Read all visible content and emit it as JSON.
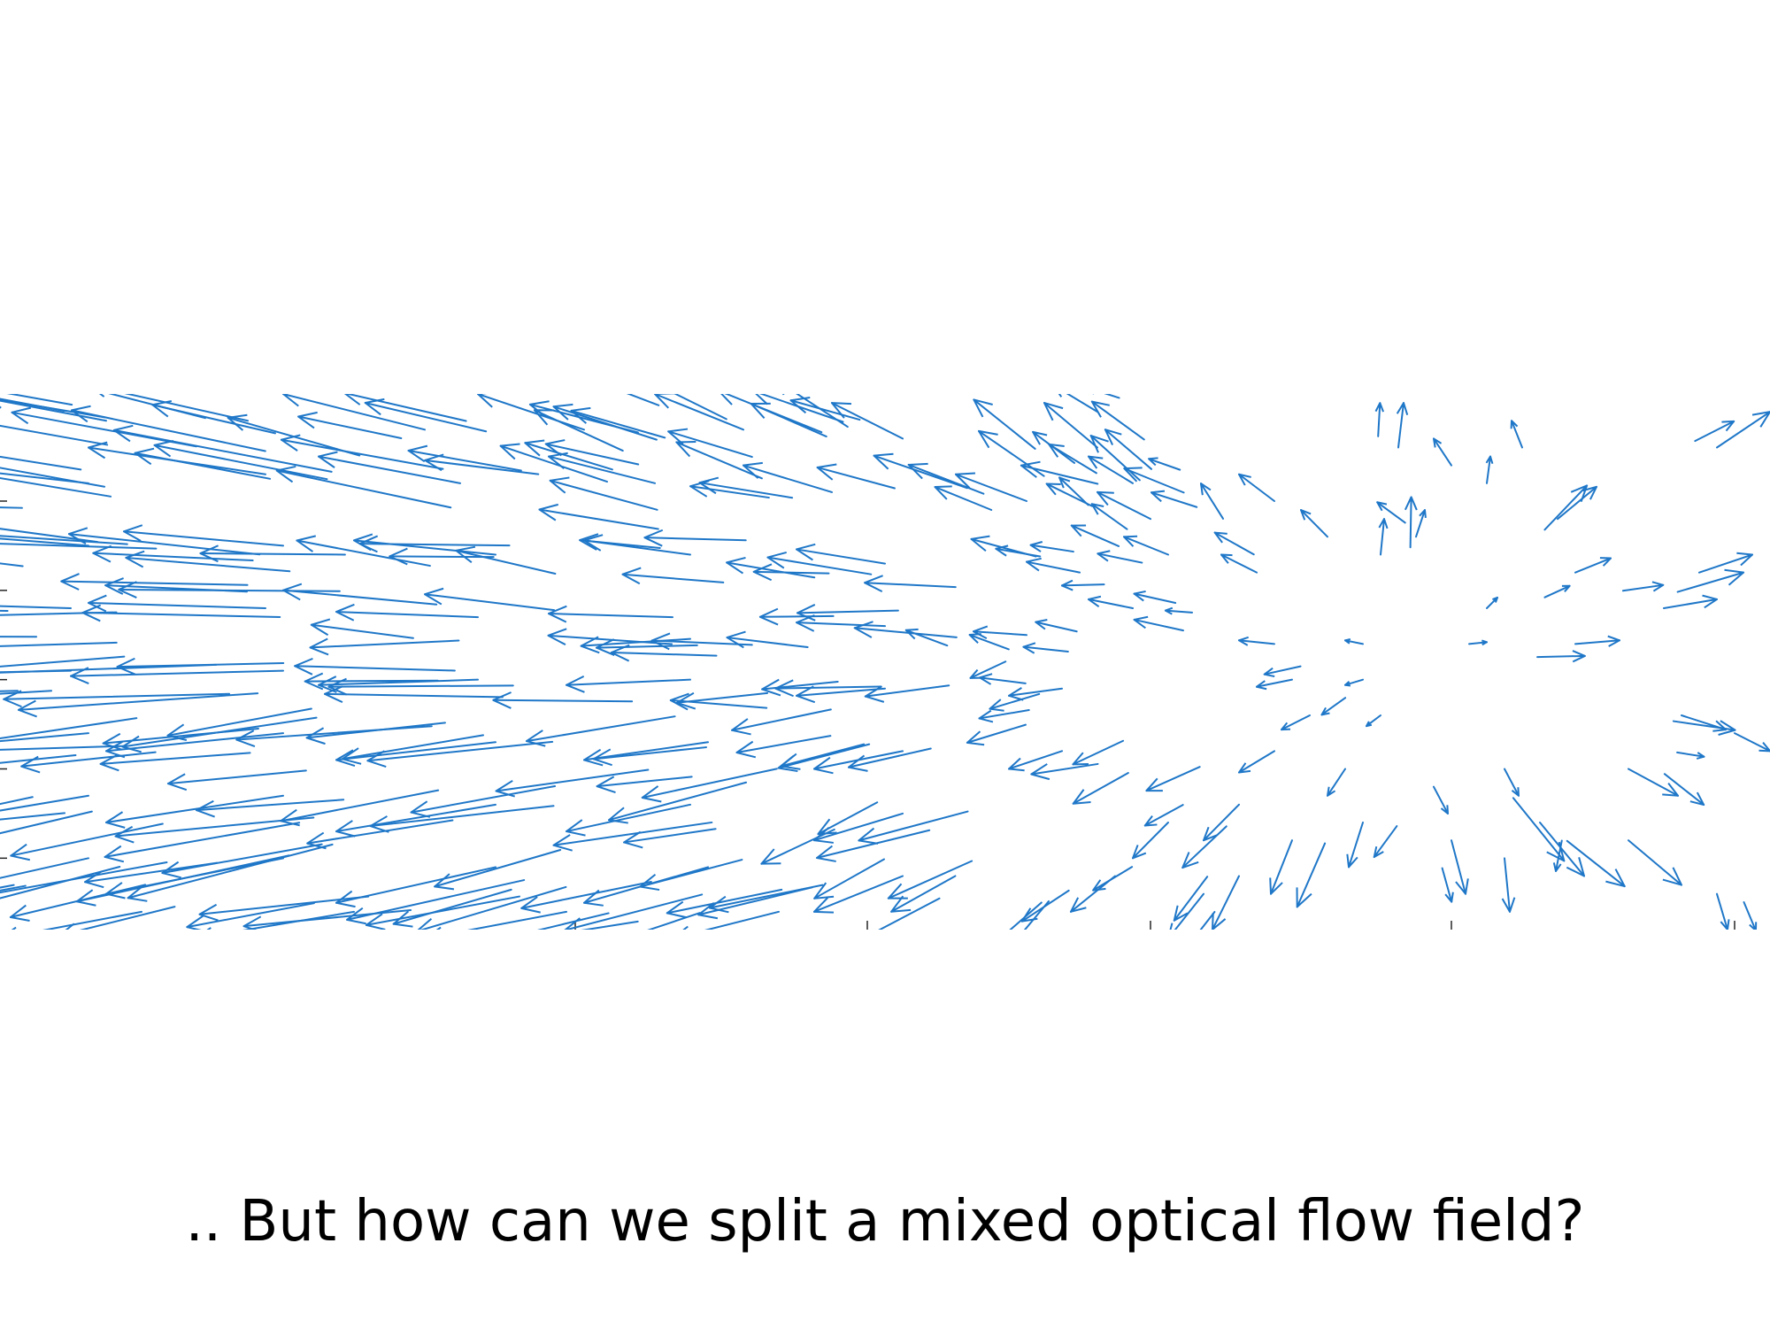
{
  "slide": {
    "caption": ".. But how can we split a mixed optical flow field?"
  },
  "colors": {
    "arrow": "#1f77c8",
    "axis": "#262626",
    "background": "#ffffff"
  },
  "chart_data": {
    "type": "quiver",
    "title": "",
    "xlabel": "",
    "ylabel": "",
    "grid": false,
    "xlim": [
      0,
      100
    ],
    "ylim": [
      0,
      30
    ],
    "description_of_field": "mixed field: strong leftward flow on the left half, radial expansion from a focus near x=80, y=15 on the right",
    "focus_of_expansion": [
      80,
      15
    ],
    "vectors": [
      {
        "x": 6,
        "y": 28.5,
        "u": -8,
        "v": 1.5
      },
      {
        "x": 14,
        "y": 28.5,
        "u": -9,
        "v": 2
      },
      {
        "x": 24,
        "y": 28,
        "u": -8,
        "v": 2
      },
      {
        "x": 33,
        "y": 28,
        "u": -6,
        "v": 2
      },
      {
        "x": 42,
        "y": 28,
        "u": -5,
        "v": 2
      },
      {
        "x": 51,
        "y": 27.5,
        "u": -4,
        "v": 2
      },
      {
        "x": 62,
        "y": 27,
        "u": -3,
        "v": 2.5
      },
      {
        "x": 5,
        "y": 25,
        "u": -9,
        "v": 1
      },
      {
        "x": 15,
        "y": 25.5,
        "u": -10,
        "v": 1.5
      },
      {
        "x": 26,
        "y": 25,
        "u": -8,
        "v": 1.5
      },
      {
        "x": 37,
        "y": 25,
        "u": -6,
        "v": 1.5
      },
      {
        "x": 47,
        "y": 24.5,
        "u": -5,
        "v": 1.5
      },
      {
        "x": 58,
        "y": 24,
        "u": -4,
        "v": 1.5
      },
      {
        "x": 65,
        "y": 23,
        "u": -3,
        "v": 1.5
      },
      {
        "x": 5,
        "y": 21.5,
        "u": -10,
        "v": 0.8
      },
      {
        "x": 16,
        "y": 21.5,
        "u": -9,
        "v": 0.8
      },
      {
        "x": 28,
        "y": 21,
        "u": -8,
        "v": 0.8
      },
      {
        "x": 39,
        "y": 21,
        "u": -6,
        "v": 0.8
      },
      {
        "x": 50,
        "y": 20.5,
        "u": -5,
        "v": 0.8
      },
      {
        "x": 61,
        "y": 20,
        "u": -3,
        "v": 0.6
      },
      {
        "x": 4,
        "y": 18,
        "u": -10,
        "v": 0.3
      },
      {
        "x": 15,
        "y": 18,
        "u": -10,
        "v": 0.3
      },
      {
        "x": 27,
        "y": 17.5,
        "u": -8,
        "v": 0.3
      },
      {
        "x": 38,
        "y": 17.5,
        "u": -7,
        "v": 0.2
      },
      {
        "x": 50,
        "y": 17,
        "u": -5,
        "v": 0.2
      },
      {
        "x": 58,
        "y": 16.5,
        "u": -3,
        "v": 0.2
      },
      {
        "x": 4,
        "y": 14.5,
        "u": -10,
        "v": -0.2
      },
      {
        "x": 16,
        "y": 14.5,
        "u": -12,
        "v": -0.3
      },
      {
        "x": 27,
        "y": 14,
        "u": -9,
        "v": -0.3
      },
      {
        "x": 39,
        "y": 14,
        "u": -7,
        "v": -0.3
      },
      {
        "x": 50,
        "y": 13.5,
        "u": -5,
        "v": -0.4
      },
      {
        "x": 60,
        "y": 13.5,
        "u": -3,
        "v": -0.4
      },
      {
        "x": 5,
        "y": 11,
        "u": -9,
        "v": -0.8
      },
      {
        "x": 16,
        "y": 11,
        "u": -10,
        "v": -1
      },
      {
        "x": 28,
        "y": 10.5,
        "u": -9,
        "v": -1
      },
      {
        "x": 40,
        "y": 10.5,
        "u": -7,
        "v": -1
      },
      {
        "x": 51,
        "y": 10,
        "u": -5,
        "v": -1
      },
      {
        "x": 60,
        "y": 10,
        "u": -3,
        "v": -1
      },
      {
        "x": 5,
        "y": 7.5,
        "u": -9,
        "v": -1.5
      },
      {
        "x": 16,
        "y": 7.5,
        "u": -10,
        "v": -1.5
      },
      {
        "x": 28,
        "y": 7,
        "u": -9,
        "v": -1.5
      },
      {
        "x": 39,
        "y": 7,
        "u": -7,
        "v": -1.5
      },
      {
        "x": 51,
        "y": 6.5,
        "u": -5,
        "v": -1.5
      },
      {
        "x": 5,
        "y": 4,
        "u": -9,
        "v": -2
      },
      {
        "x": 16,
        "y": 4,
        "u": -10,
        "v": -2
      },
      {
        "x": 28,
        "y": 3.5,
        "u": -9,
        "v": -2
      },
      {
        "x": 40,
        "y": 3.5,
        "u": -7,
        "v": -2
      },
      {
        "x": 51,
        "y": 3,
        "u": -5,
        "v": -2
      },
      {
        "x": 8,
        "y": 1,
        "u": -8,
        "v": -1.5
      },
      {
        "x": 20,
        "y": 1,
        "u": -9,
        "v": -1.5
      },
      {
        "x": 32,
        "y": 1,
        "u": -8,
        "v": -1.5
      },
      {
        "x": 44,
        "y": 1,
        "u": -6,
        "v": -1.5
      },
      {
        "x": 62,
        "y": 29,
        "u": -2.5,
        "v": 1.5
      },
      {
        "x": 64,
        "y": 25,
        "u": -2.5,
        "v": 1.5
      },
      {
        "x": 66,
        "y": 21,
        "u": -2.5,
        "v": 1
      },
      {
        "x": 64,
        "y": 18,
        "u": -2.5,
        "v": 0.5
      },
      {
        "x": 66,
        "y": 6,
        "u": -2,
        "v": -2
      },
      {
        "x": 63,
        "y": 3,
        "u": -2.5,
        "v": -2
      },
      {
        "x": 68,
        "y": 2,
        "u": -2,
        "v": -2.5
      },
      {
        "x": 72,
        "y": 24,
        "u": -2,
        "v": 1.5
      },
      {
        "x": 75,
        "y": 22,
        "u": -1.5,
        "v": 1.5
      },
      {
        "x": 71,
        "y": 20,
        "u": -2,
        "v": 1
      },
      {
        "x": 72,
        "y": 16,
        "u": -2,
        "v": 0.2
      },
      {
        "x": 73,
        "y": 14,
        "u": -2,
        "v": -0.4
      },
      {
        "x": 74,
        "y": 12,
        "u": -1.6,
        "v": -0.8
      },
      {
        "x": 72,
        "y": 10,
        "u": -2,
        "v": -1.2
      },
      {
        "x": 70,
        "y": 7,
        "u": -2,
        "v": -2
      },
      {
        "x": 73,
        "y": 5,
        "u": -1.2,
        "v": -3
      },
      {
        "x": 70,
        "y": 3,
        "u": -1.5,
        "v": -3
      },
      {
        "x": 77,
        "y": 14,
        "u": -1,
        "v": -0.3
      },
      {
        "x": 78,
        "y": 12,
        "u": -0.8,
        "v": -0.6
      },
      {
        "x": 77,
        "y": 16,
        "u": -1,
        "v": 0.2
      },
      {
        "x": 76,
        "y": 9,
        "u": -1,
        "v": -1.5
      },
      {
        "x": 77,
        "y": 6,
        "u": -0.8,
        "v": -2.5
      },
      {
        "x": 78,
        "y": 21,
        "u": 0.2,
        "v": 2
      },
      {
        "x": 79,
        "y": 27,
        "u": 0.3,
        "v": 2.5
      },
      {
        "x": 80,
        "y": 22,
        "u": 0.5,
        "v": 1.5
      },
      {
        "x": 82,
        "y": 26,
        "u": -1,
        "v": 1.5
      },
      {
        "x": 84,
        "y": 25,
        "u": 0.2,
        "v": 1.5
      },
      {
        "x": 86,
        "y": 27,
        "u": -0.6,
        "v": 1.5
      },
      {
        "x": 83,
        "y": 16,
        "u": 1,
        "v": 0.1
      },
      {
        "x": 84,
        "y": 18,
        "u": 0.6,
        "v": 0.6
      },
      {
        "x": 81,
        "y": 8,
        "u": 0.8,
        "v": -1.5
      },
      {
        "x": 82,
        "y": 5,
        "u": 0.8,
        "v": -3
      },
      {
        "x": 85,
        "y": 4,
        "u": 0.3,
        "v": -3
      },
      {
        "x": 85,
        "y": 9,
        "u": 0.8,
        "v": -1.5
      },
      {
        "x": 87,
        "y": 6,
        "u": 2.5,
        "v": -3
      },
      {
        "x": 88,
        "y": 23,
        "u": 2.2,
        "v": 1.8
      },
      {
        "x": 89,
        "y": 20,
        "u": 2,
        "v": 0.8
      },
      {
        "x": 89,
        "y": 16,
        "u": 2.5,
        "v": 0.2
      },
      {
        "x": 92,
        "y": 9,
        "u": 2.8,
        "v": -1.5
      },
      {
        "x": 92,
        "y": 5,
        "u": 3,
        "v": -2.5
      },
      {
        "x": 94,
        "y": 18,
        "u": 3,
        "v": 0.5
      },
      {
        "x": 95,
        "y": 12,
        "u": 2.5,
        "v": -0.8
      },
      {
        "x": 96,
        "y": 20,
        "u": 3,
        "v": 1
      },
      {
        "x": 97,
        "y": 27,
        "u": 3,
        "v": 2
      },
      {
        "x": 97,
        "y": 2,
        "u": 0.6,
        "v": -2
      },
      {
        "x": 98,
        "y": 11,
        "u": 2,
        "v": -1
      }
    ]
  }
}
